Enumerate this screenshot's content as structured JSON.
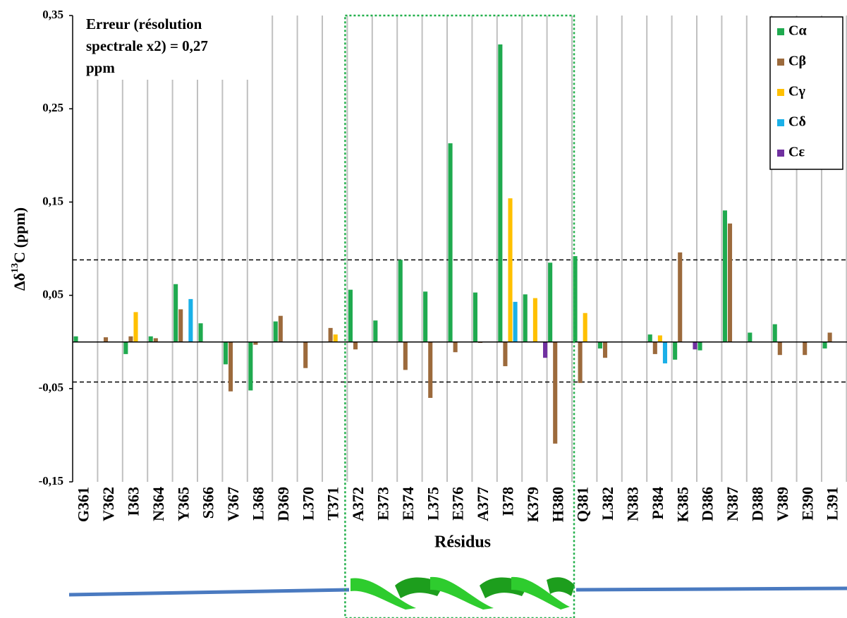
{
  "chart_data": {
    "type": "bar",
    "ylabel": {
      "main": "Δδ",
      "sup": "13",
      "rest": "C (ppm)"
    },
    "xlabel": "Résidus",
    "annotation": [
      "Erreur  (résolution",
      "spectrale x2) = 0,27",
      "ppm"
    ],
    "categories": [
      "G361",
      "V362",
      "I363",
      "N364",
      "Y365",
      "S366",
      "V367",
      "L368",
      "D369",
      "L370",
      "T371",
      "A372",
      "E373",
      "E374",
      "L375",
      "E376",
      "A377",
      "I378",
      "K379",
      "H380",
      "Q381",
      "L382",
      "N383",
      "P384",
      "K385",
      "D386",
      "N387",
      "D388",
      "V389",
      "E390",
      "L391"
    ],
    "series": [
      {
        "name": "Cα",
        "color": "#1faa4f",
        "values": [
          0.006,
          null,
          -0.013,
          0.006,
          0.062,
          0.02,
          -0.024,
          -0.052,
          0.022,
          null,
          null,
          0.056,
          0.023,
          0.088,
          0.054,
          0.213,
          0.053,
          0.319,
          0.051,
          0.085,
          0.092,
          -0.007,
          null,
          0.008,
          -0.019,
          -0.009,
          0.141,
          0.01,
          0.019,
          null,
          -0.007
        ]
      },
      {
        "name": "Cβ",
        "color": "#9c6a3c",
        "values": [
          null,
          0.005,
          0.006,
          0.004,
          0.035,
          null,
          -0.053,
          -0.003,
          0.028,
          -0.028,
          0.015,
          -0.008,
          null,
          -0.03,
          -0.06,
          -0.011,
          -0.001,
          -0.026,
          null,
          -0.109,
          -0.044,
          -0.017,
          null,
          -0.013,
          0.096,
          null,
          0.127,
          null,
          -0.014,
          -0.014,
          0.01
        ]
      },
      {
        "name": "Cγ",
        "color": "#ffc000",
        "values": [
          null,
          null,
          0.032,
          null,
          null,
          null,
          null,
          null,
          null,
          null,
          0.008,
          null,
          null,
          null,
          null,
          null,
          null,
          0.154,
          0.047,
          null,
          0.031,
          null,
          null,
          0.007,
          null,
          null,
          null,
          null,
          null,
          null,
          null
        ]
      },
      {
        "name": "Cδ",
        "color": "#1ab0e8",
        "values": [
          null,
          null,
          null,
          null,
          0.046,
          null,
          null,
          null,
          null,
          null,
          null,
          null,
          null,
          null,
          null,
          null,
          null,
          0.043,
          null,
          null,
          null,
          null,
          null,
          -0.023,
          null,
          null,
          null,
          null,
          null,
          null,
          null
        ]
      },
      {
        "name": "Cε",
        "color": "#7030a0",
        "values": [
          null,
          null,
          null,
          null,
          null,
          null,
          null,
          null,
          null,
          null,
          null,
          null,
          null,
          null,
          null,
          null,
          null,
          null,
          -0.017,
          null,
          null,
          null,
          null,
          null,
          -0.008,
          null,
          null,
          null,
          null,
          null,
          null
        ]
      }
    ],
    "ylim": [
      -0.15,
      0.35
    ],
    "yticks": [
      {
        "value": 0.35,
        "label": "0,35"
      },
      {
        "value": 0.25,
        "label": "0,25"
      },
      {
        "value": 0.15,
        "label": "0,15"
      },
      {
        "value": 0.05,
        "label": "0,05"
      },
      {
        "value": -0.05,
        "label": "-0,05"
      },
      {
        "value": -0.15,
        "label": "-0,15"
      }
    ],
    "reference_lines": [
      0.088,
      -0.043
    ],
    "legend": "upper right"
  }
}
